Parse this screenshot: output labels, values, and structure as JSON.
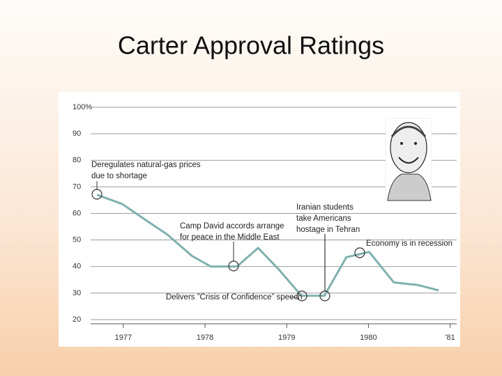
{
  "chart_data": {
    "type": "line",
    "title": "Carter Approval Ratings",
    "x": [
      1976.68,
      1976.99,
      1977.25,
      1977.54,
      1977.84,
      1978.07,
      1978.39,
      1978.65,
      1978.9,
      1979.18,
      1979.46,
      1979.73,
      1980.01,
      1980.31,
      1980.61,
      1980.86
    ],
    "y": [
      67,
      63.5,
      58,
      52,
      44,
      40,
      40,
      47,
      39,
      29,
      29,
      43.5,
      45.5,
      34,
      33,
      31
    ],
    "color": "#7fb0ae",
    "xlim": [
      1976.6,
      1981.08
    ],
    "xticks": [
      1977,
      1978,
      1979,
      1980,
      {
        "value": 1981,
        "label": "'81"
      }
    ],
    "ylim": [
      20,
      100
    ],
    "yticks": [
      {
        "value": 100,
        "label": "100%"
      },
      90,
      80,
      70,
      60,
      50,
      40,
      30,
      20
    ],
    "grid": true,
    "annotations": [
      {
        "lines": [
          "Deregulates natural-gas prices",
          "due to shortage"
        ]
      },
      {
        "lines": [
          "Camp David accords arrange",
          "for peace in the Middle East"
        ]
      },
      {
        "lines": [
          "Iranian students",
          "take Americans",
          "hostage in Tehran"
        ]
      },
      {
        "lines": [
          "Economy is in recession"
        ]
      },
      {
        "lines": [
          "Delivers ”Crisis of Confidence” speech"
        ]
      }
    ]
  }
}
